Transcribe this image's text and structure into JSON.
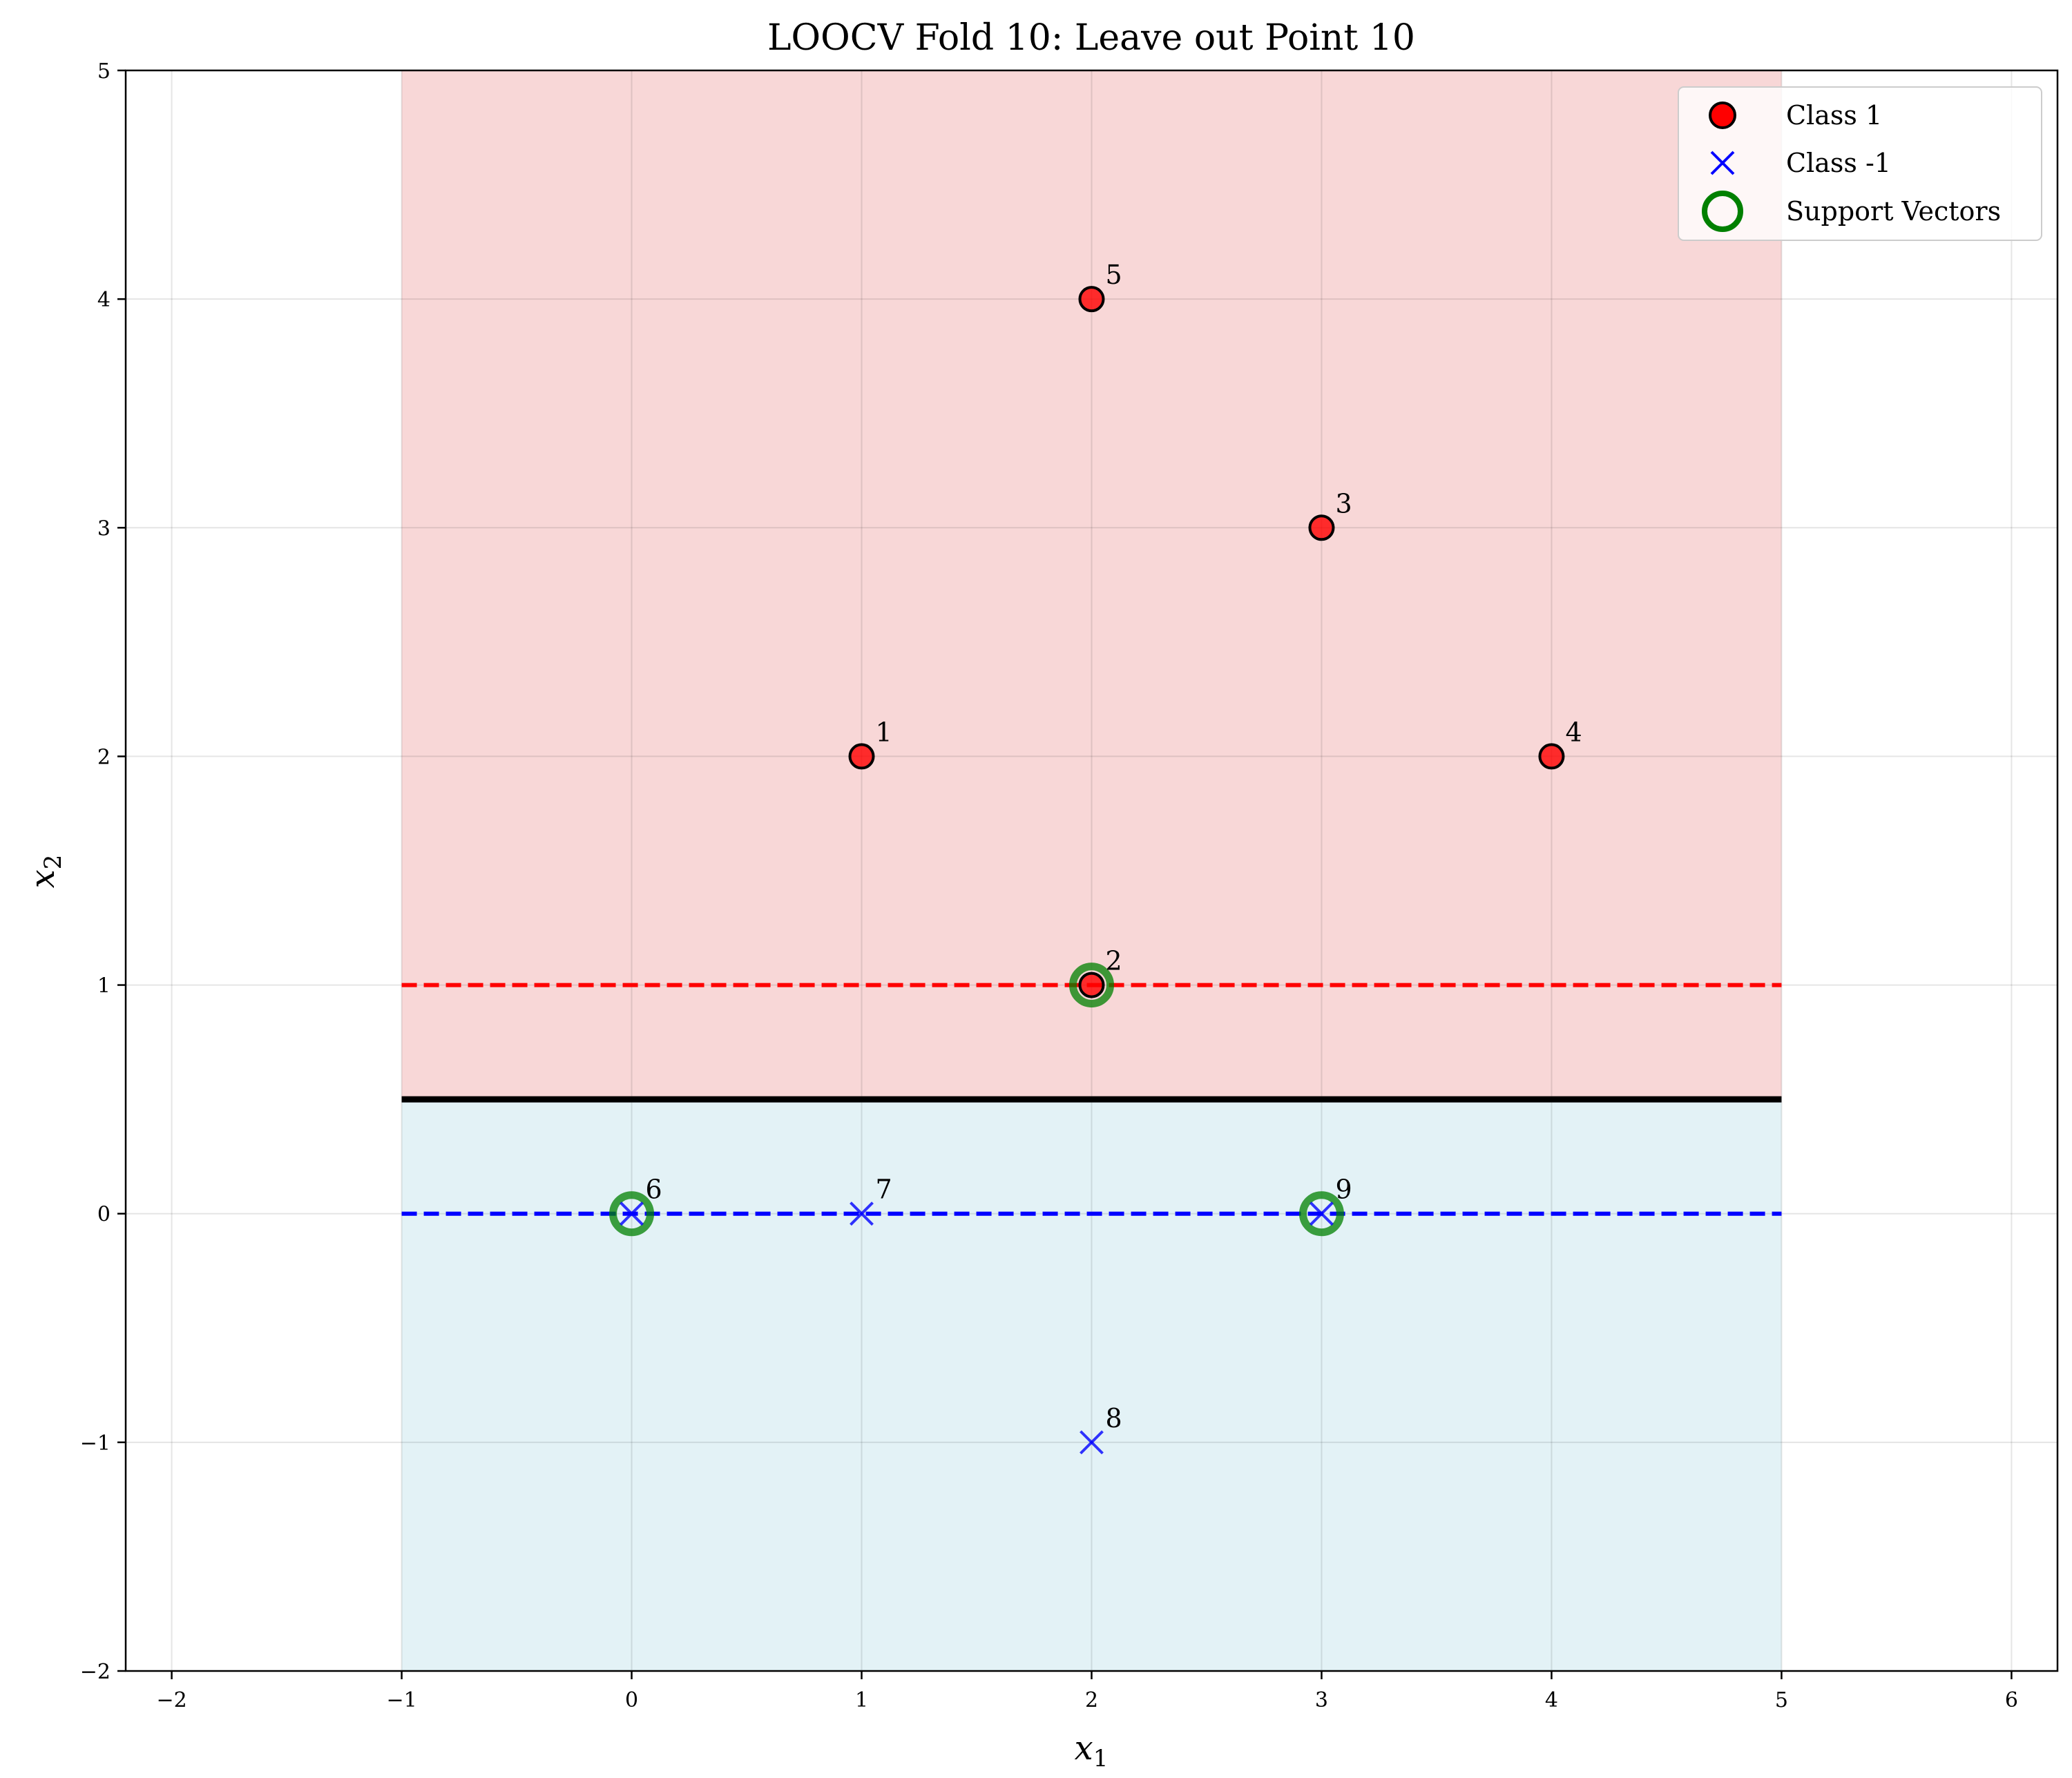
{
  "chart_data": {
    "type": "scatter",
    "title": "LOOCV Fold 10: Leave out Point 10",
    "xlabel": "x",
    "xlabel_sub": "1",
    "ylabel": "x",
    "ylabel_sub": "2",
    "xlim": [
      -2.2,
      6.2
    ],
    "ylim": [
      -2,
      5
    ],
    "xticks": [
      -2,
      -1,
      0,
      1,
      2,
      3,
      4,
      5,
      6
    ],
    "yticks": [
      -2,
      -1,
      0,
      1,
      2,
      3,
      4,
      5
    ],
    "grid": true,
    "legend_position": "top-right",
    "regions": [
      {
        "name": "class-1-region",
        "x": [
          -1,
          5
        ],
        "y": [
          0.5,
          5
        ],
        "color": "#f8d7d7"
      },
      {
        "name": "class-neg1-region",
        "x": [
          -1,
          5
        ],
        "y": [
          -2,
          0.5
        ],
        "color": "#e3f2f6"
      }
    ],
    "lines": [
      {
        "name": "decision-boundary",
        "y": 0.5,
        "x": [
          -1,
          5
        ],
        "color": "#000000",
        "style": "solid"
      },
      {
        "name": "positive-margin",
        "y": 1,
        "x": [
          -1,
          5
        ],
        "color": "#ff0000",
        "style": "dashed"
      },
      {
        "name": "negative-margin",
        "y": 0,
        "x": [
          -1,
          5
        ],
        "color": "#0000ff",
        "style": "dashed"
      }
    ],
    "series": [
      {
        "name": "Class 1",
        "marker": "circle",
        "color": "#ff0000",
        "points": [
          {
            "x": 1,
            "y": 2,
            "label": "1"
          },
          {
            "x": 2,
            "y": 1,
            "label": "2"
          },
          {
            "x": 3,
            "y": 3,
            "label": "3"
          },
          {
            "x": 4,
            "y": 2,
            "label": "4"
          },
          {
            "x": 2,
            "y": 4,
            "label": "5"
          }
        ]
      },
      {
        "name": "Class -1",
        "marker": "x",
        "color": "#0000ff",
        "points": [
          {
            "x": 0,
            "y": 0,
            "label": "6"
          },
          {
            "x": 1,
            "y": 0,
            "label": "7"
          },
          {
            "x": 2,
            "y": -1,
            "label": "8"
          },
          {
            "x": 3,
            "y": 0,
            "label": "9"
          }
        ]
      },
      {
        "name": "Support Vectors",
        "marker": "ring",
        "color": "#008000",
        "points": [
          {
            "x": 2,
            "y": 1
          },
          {
            "x": 0,
            "y": 0
          },
          {
            "x": 3,
            "y": 0
          }
        ]
      }
    ]
  }
}
